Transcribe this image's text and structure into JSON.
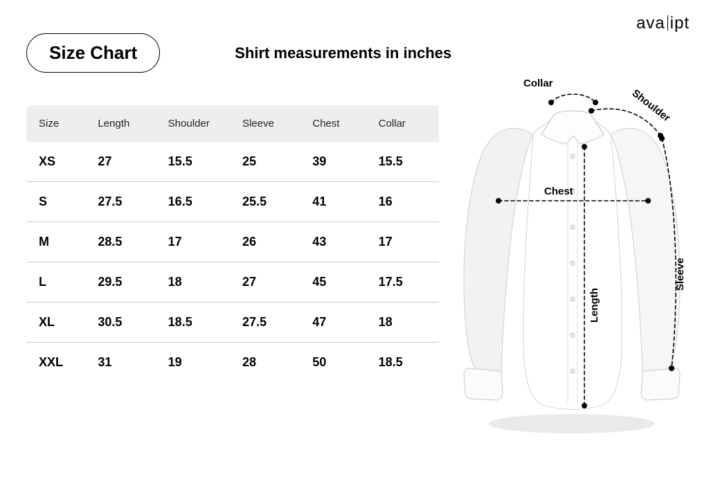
{
  "brand": {
    "left": "ava",
    "right": "ipt"
  },
  "header": {
    "title": "Size Chart",
    "subtitle": "Shirt measurements in inches"
  },
  "table": {
    "columns": [
      "Size",
      "Length",
      "Shoulder",
      "Sleeve",
      "Chest",
      "Collar"
    ],
    "col_widths_pct": [
      16,
      17,
      18,
      17,
      16,
      16
    ],
    "rows": [
      [
        "XS",
        "27",
        "15.5",
        "25",
        "39",
        "15.5"
      ],
      [
        "S",
        "27.5",
        "16.5",
        "25.5",
        "41",
        "16"
      ],
      [
        "M",
        "28.5",
        "17",
        "26",
        "43",
        "17"
      ],
      [
        "L",
        "29.5",
        "18",
        "27",
        "45",
        "17.5"
      ],
      [
        "XL",
        "30.5",
        "18.5",
        "27.5",
        "47",
        "18"
      ],
      [
        "XXL",
        "31",
        "19",
        "28",
        "50",
        "18.5"
      ]
    ],
    "header_bg": "#eeeeee",
    "header_font_size": 15,
    "header_font_weight": 500,
    "body_font_size": 18,
    "body_font_weight": 700,
    "row_border_color": "#c9c9c9"
  },
  "diagram": {
    "labels": {
      "collar": "Collar",
      "shoulder": "Shoulder",
      "chest": "Chest",
      "length": "Length",
      "sleeve": "Sleeve"
    },
    "shirt": {
      "fill": "#ffffff",
      "stroke": "#dcdcdc",
      "shadow": "#b8b8b8",
      "highlight": "#f4f4f4"
    },
    "dash_color": "#000000",
    "dot_color": "#000000",
    "dash_pattern": "5,4",
    "dot_radius": 4,
    "line_width": 1.6
  },
  "colors": {
    "bg": "#ffffff",
    "text": "#000000"
  }
}
